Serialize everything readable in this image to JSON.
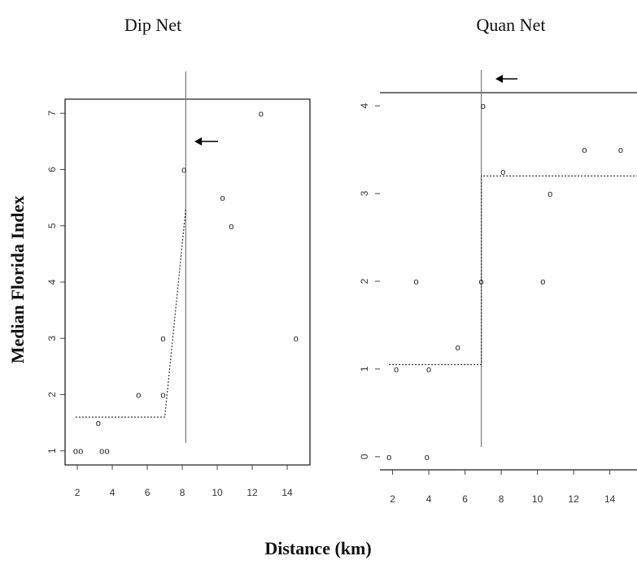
{
  "figure": {
    "ylabel": "Median Florida Index",
    "xlabel": "Distance (km)"
  },
  "chart_data": [
    {
      "type": "scatter",
      "title": "Dip Net",
      "xticks": [
        2,
        4,
        6,
        8,
        10,
        12,
        14
      ],
      "yticks": [
        1,
        2,
        3,
        4,
        5,
        6,
        7
      ],
      "xlim": [
        1.3,
        15.3
      ],
      "ylim": [
        0.75,
        7.25
      ],
      "points": [
        {
          "x": 1.9,
          "y": 1.0
        },
        {
          "x": 2.2,
          "y": 1.0
        },
        {
          "x": 3.4,
          "y": 1.0
        },
        {
          "x": 3.7,
          "y": 1.0
        },
        {
          "x": 3.2,
          "y": 1.5
        },
        {
          "x": 5.5,
          "y": 2.0
        },
        {
          "x": 6.9,
          "y": 2.0
        },
        {
          "x": 6.9,
          "y": 3.0
        },
        {
          "x": 14.5,
          "y": 3.0
        },
        {
          "x": 8.1,
          "y": 6.0
        },
        {
          "x": 10.3,
          "y": 5.5
        },
        {
          "x": 10.8,
          "y": 5.0
        },
        {
          "x": 12.5,
          "y": 7.0
        }
      ],
      "fit_line": [
        {
          "x": 1.9,
          "y": 1.6
        },
        {
          "x": 7.0,
          "y": 1.6
        },
        {
          "x": 8.2,
          "y": 5.3
        }
      ],
      "breakpoint_x": 8.2,
      "annotation": "arrow pointing left at breakpoint"
    },
    {
      "type": "scatter",
      "title": "Quan Net",
      "xticks": [
        2,
        4,
        6,
        8,
        10,
        12,
        14
      ],
      "yticks": [
        0,
        1,
        2,
        3,
        4
      ],
      "xlim": [
        1.3,
        15.5
      ],
      "ylim": [
        -0.15,
        4.15
      ],
      "points": [
        {
          "x": 1.8,
          "y": 0.0
        },
        {
          "x": 3.9,
          "y": 0.0
        },
        {
          "x": 2.2,
          "y": 1.0
        },
        {
          "x": 4.0,
          "y": 1.0
        },
        {
          "x": 5.6,
          "y": 1.25
        },
        {
          "x": 3.3,
          "y": 2.0
        },
        {
          "x": 6.9,
          "y": 2.0
        },
        {
          "x": 10.3,
          "y": 2.0
        },
        {
          "x": 7.0,
          "y": 4.0
        },
        {
          "x": 8.1,
          "y": 3.25
        },
        {
          "x": 10.7,
          "y": 3.0
        },
        {
          "x": 12.6,
          "y": 3.5
        },
        {
          "x": 14.6,
          "y": 3.5
        }
      ],
      "fit_line": [
        {
          "x": 1.8,
          "y": 1.05
        },
        {
          "x": 6.9,
          "y": 1.05
        },
        {
          "x": 6.9,
          "y": 3.2
        },
        {
          "x": 15.5,
          "y": 3.2
        }
      ],
      "breakpoint_x": 6.9,
      "annotation": "arrow pointing left at breakpoint"
    }
  ]
}
